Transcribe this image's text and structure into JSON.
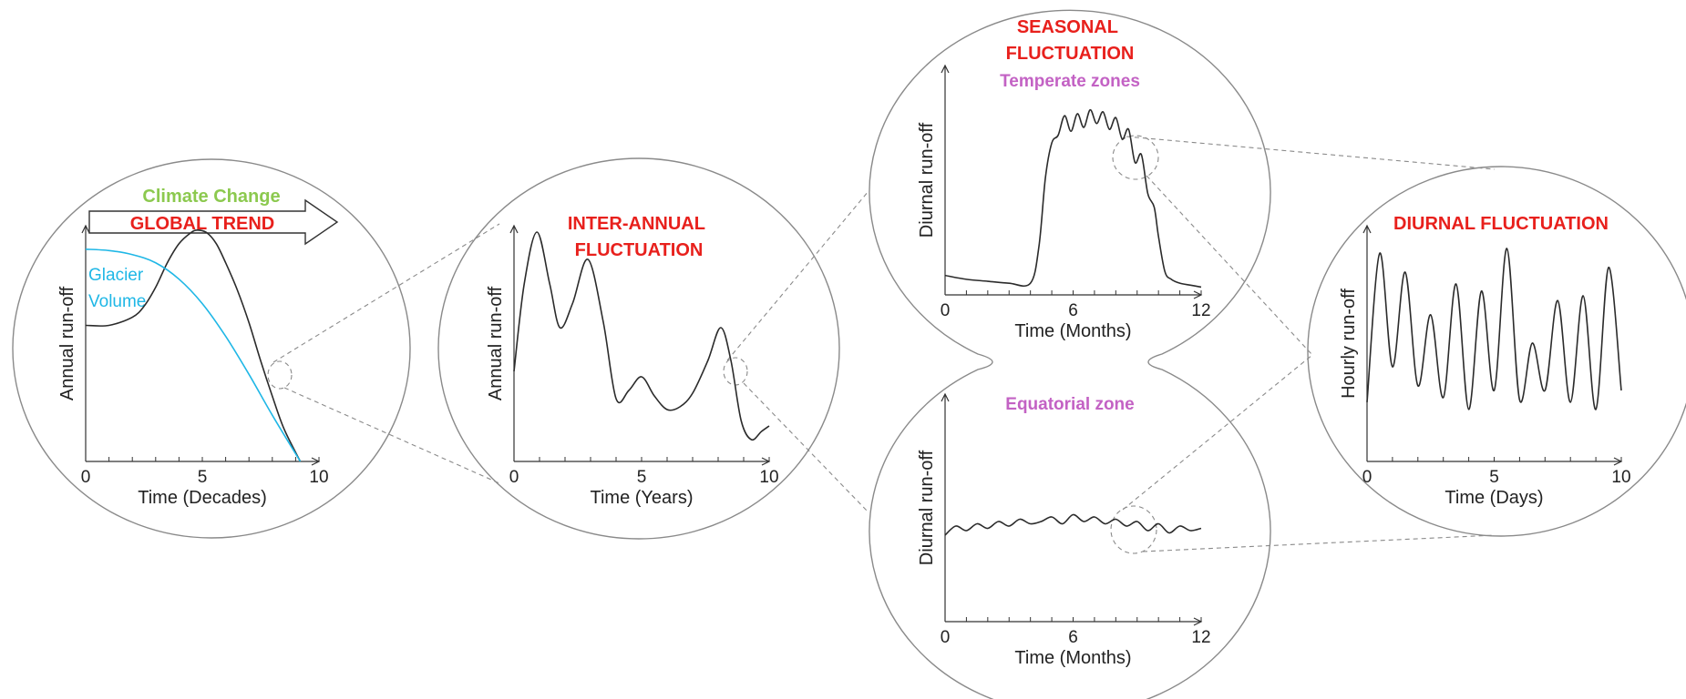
{
  "colors": {
    "red_title": "#e8201c",
    "purple_title": "#c362c4",
    "green_title": "#8cc94f",
    "cyan": "#1fb7e6",
    "line": "#2b2b2b",
    "bubble": "#8a8a8a"
  },
  "chart_data": [
    {
      "id": "decades",
      "type": "line",
      "xlabel": "Time (Decades)",
      "ylabel": "Annual run-off",
      "xticks": [
        "0",
        "5",
        "10"
      ],
      "xlim": [
        0,
        10
      ],
      "arrow_label_top": "Climate Change",
      "arrow_label_bottom": "GLOBAL TREND",
      "series": [
        {
          "name": "",
          "x": [
            0,
            1,
            2,
            2.5,
            3,
            3.5,
            4,
            4.5,
            4.8,
            5.2,
            5.6,
            6,
            6.5,
            7,
            7.5,
            8,
            8.5,
            9.2
          ],
          "y": [
            0.5,
            0.5,
            0.53,
            0.57,
            0.64,
            0.73,
            0.8,
            0.84,
            0.85,
            0.84,
            0.8,
            0.73,
            0.63,
            0.51,
            0.37,
            0.24,
            0.12,
            0
          ]
        },
        {
          "name": "Glacier Volume",
          "x": [
            0,
            1,
            2,
            3,
            4,
            5,
            6,
            7,
            8,
            9.2
          ],
          "y": [
            0.78,
            0.775,
            0.76,
            0.73,
            0.67,
            0.58,
            0.46,
            0.32,
            0.17,
            0
          ]
        }
      ]
    },
    {
      "id": "years",
      "type": "line",
      "title": "INTER-ANNUAL FLUCTUATION",
      "xlabel": "Time (Years)",
      "ylabel": "Annual run-off",
      "xticks": [
        "0",
        "5",
        "10"
      ],
      "xlim": [
        0,
        10
      ],
      "series": [
        {
          "name": "",
          "x": [
            0,
            0.4,
            0.9,
            1.4,
            1.8,
            2.3,
            2.9,
            3.5,
            4,
            4.5,
            5,
            5.5,
            6,
            6.5,
            7,
            7.6,
            8.1,
            8.5,
            8.9,
            9.3,
            9.7,
            10
          ],
          "y": [
            0.33,
            0.65,
            0.84,
            0.65,
            0.49,
            0.58,
            0.74,
            0.51,
            0.23,
            0.26,
            0.31,
            0.24,
            0.19,
            0.2,
            0.25,
            0.37,
            0.49,
            0.37,
            0.15,
            0.08,
            0.11,
            0.13
          ]
        }
      ]
    },
    {
      "id": "months-temperate",
      "type": "line",
      "title": "SEASONAL FLUCTUATION",
      "subtitle": "Temperate zones",
      "xlabel": "Time (Months)",
      "ylabel": "Diurnal run-off",
      "xticks": [
        "0",
        "6",
        "12"
      ],
      "xlim": [
        0,
        12
      ],
      "series": [
        {
          "name": "",
          "x": [
            0,
            1,
            2,
            3,
            4,
            4.4,
            4.7,
            5.0,
            5.3,
            5.6,
            5.9,
            6.2,
            6.5,
            6.8,
            7.1,
            7.4,
            7.7,
            8.0,
            8.3,
            8.6,
            8.9,
            9.2,
            9.5,
            9.8,
            10.0,
            10.3,
            10.6,
            11,
            11.5,
            12
          ],
          "y": [
            0.1,
            0.08,
            0.07,
            0.06,
            0.06,
            0.25,
            0.6,
            0.78,
            0.82,
            0.92,
            0.84,
            0.93,
            0.86,
            0.95,
            0.88,
            0.94,
            0.85,
            0.91,
            0.8,
            0.85,
            0.68,
            0.72,
            0.52,
            0.45,
            0.3,
            0.12,
            0.08,
            0.06,
            0.05,
            0.04
          ]
        }
      ]
    },
    {
      "id": "months-equatorial",
      "type": "line",
      "title": "Equatorial zone",
      "xlabel": "Time (Months)",
      "ylabel": "Diurnal run-off",
      "xticks": [
        "0",
        "6",
        "12"
      ],
      "xlim": [
        0,
        12
      ],
      "series": [
        {
          "name": "",
          "x": [
            0,
            0.5,
            1,
            1.5,
            2,
            2.5,
            3,
            3.5,
            4,
            4.5,
            5,
            5.5,
            6,
            6.5,
            7,
            7.5,
            8,
            8.5,
            9,
            9.5,
            10,
            10.5,
            11,
            11.5,
            12
          ],
          "y": [
            0.38,
            0.42,
            0.4,
            0.43,
            0.41,
            0.44,
            0.42,
            0.45,
            0.43,
            0.44,
            0.46,
            0.43,
            0.47,
            0.44,
            0.46,
            0.43,
            0.45,
            0.42,
            0.44,
            0.4,
            0.43,
            0.39,
            0.42,
            0.4,
            0.41
          ]
        }
      ]
    },
    {
      "id": "days",
      "type": "line",
      "title": "DIURNAL FLUCTUATION",
      "xlabel": "Time (Days)",
      "ylabel": "Hourly run-off",
      "xticks": [
        "0",
        "5",
        "10"
      ],
      "xlim": [
        0,
        10
      ],
      "series": [
        {
          "name": "",
          "x": [
            0,
            0.5,
            1,
            1.5,
            2,
            2.5,
            3,
            3.5,
            4,
            4.5,
            5,
            5.5,
            6,
            6.5,
            7,
            7.5,
            8,
            8.5,
            9,
            9.5,
            10
          ],
          "y": [
            0.25,
            0.88,
            0.4,
            0.8,
            0.32,
            0.62,
            0.27,
            0.75,
            0.22,
            0.72,
            0.3,
            0.9,
            0.26,
            0.5,
            0.3,
            0.68,
            0.25,
            0.7,
            0.22,
            0.82,
            0.3
          ]
        }
      ]
    }
  ]
}
